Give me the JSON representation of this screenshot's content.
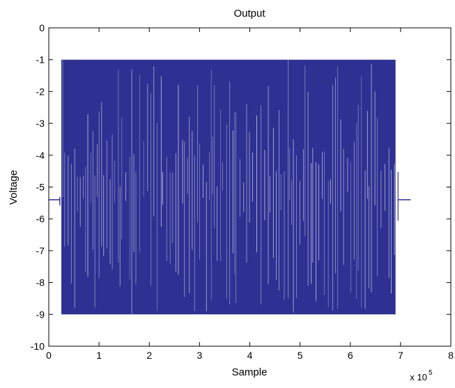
{
  "chart_data": {
    "type": "line",
    "title": "Output",
    "xlabel": "Sample",
    "ylabel": "Voltage",
    "x_multiplier_label": "x 10",
    "x_multiplier_exponent": "5",
    "xlim": [
      0,
      8
    ],
    "ylim": [
      -10,
      0
    ],
    "x_ticks": [
      0,
      1,
      2,
      3,
      4,
      5,
      6,
      7,
      8
    ],
    "x_tick_labels": [
      "0",
      "1",
      "2",
      "3",
      "4",
      "5",
      "6",
      "7",
      "8"
    ],
    "y_ticks": [
      0,
      -1,
      -2,
      -3,
      -4,
      -5,
      -6,
      -7,
      -8,
      -9,
      -10
    ],
    "y_tick_labels": [
      "0",
      "-1",
      "-2",
      "-3",
      "-4",
      "-5",
      "-6",
      "-7",
      "-8",
      "-9",
      "-10"
    ],
    "grid": false,
    "legend": "none",
    "series": [
      {
        "color": "#2e3192",
        "baseline_before": {
          "x": [
            0.0,
            0.22
          ],
          "y": -5.4
        },
        "baseline_after": {
          "x": [
            6.95,
            7.2
          ],
          "y": -5.4
        },
        "oscillation": {
          "x_start": 0.25,
          "x_end": 6.9,
          "y_high": -1.0,
          "y_low": -9.0
        }
      }
    ]
  }
}
